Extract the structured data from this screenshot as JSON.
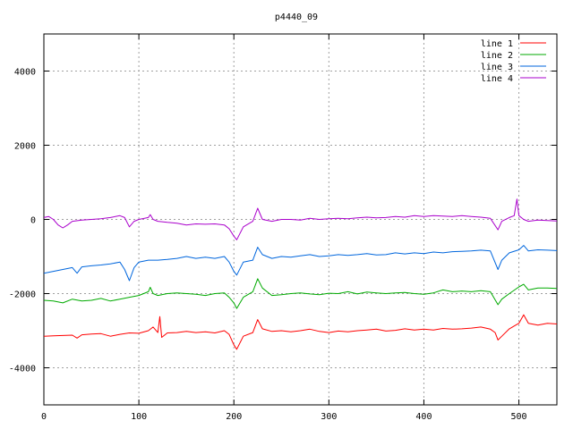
{
  "chart_data": {
    "type": "line",
    "title": "p4440_09",
    "xlabel": "",
    "ylabel": "",
    "xlim": [
      0,
      540
    ],
    "ylim": [
      -5000,
      5000
    ],
    "x_ticks": [
      0,
      100,
      200,
      300,
      400,
      500
    ],
    "y_ticks": [
      -4000,
      -2000,
      0,
      2000,
      4000
    ],
    "x_tick_labels": [
      "0",
      "100",
      "200",
      "300",
      "400",
      "500"
    ],
    "y_tick_labels": [
      "-4000",
      "-2000",
      "0",
      "2000",
      "4000"
    ],
    "grid": true,
    "legend_position": "top-right",
    "series": [
      {
        "name": "line 1",
        "color": "#ff0000",
        "points": [
          [
            0,
            -3150
          ],
          [
            10,
            -3140
          ],
          [
            20,
            -3130
          ],
          [
            30,
            -3120
          ],
          [
            35,
            -3200
          ],
          [
            40,
            -3110
          ],
          [
            50,
            -3090
          ],
          [
            60,
            -3080
          ],
          [
            70,
            -3150
          ],
          [
            80,
            -3100
          ],
          [
            90,
            -3060
          ],
          [
            100,
            -3070
          ],
          [
            110,
            -3000
          ],
          [
            115,
            -2900
          ],
          [
            120,
            -3050
          ],
          [
            122,
            -2620
          ],
          [
            124,
            -3180
          ],
          [
            130,
            -3060
          ],
          [
            140,
            -3050
          ],
          [
            150,
            -3020
          ],
          [
            160,
            -3050
          ],
          [
            170,
            -3030
          ],
          [
            180,
            -3060
          ],
          [
            190,
            -3000
          ],
          [
            195,
            -3100
          ],
          [
            200,
            -3380
          ],
          [
            203,
            -3500
          ],
          [
            210,
            -3150
          ],
          [
            220,
            -3050
          ],
          [
            225,
            -2700
          ],
          [
            230,
            -2950
          ],
          [
            240,
            -3020
          ],
          [
            250,
            -3000
          ],
          [
            260,
            -3030
          ],
          [
            270,
            -3000
          ],
          [
            280,
            -2960
          ],
          [
            290,
            -3020
          ],
          [
            300,
            -3050
          ],
          [
            310,
            -3010
          ],
          [
            320,
            -3030
          ],
          [
            330,
            -3000
          ],
          [
            340,
            -2980
          ],
          [
            350,
            -2960
          ],
          [
            360,
            -3010
          ],
          [
            370,
            -2990
          ],
          [
            380,
            -2950
          ],
          [
            390,
            -2980
          ],
          [
            400,
            -2960
          ],
          [
            410,
            -2980
          ],
          [
            420,
            -2940
          ],
          [
            430,
            -2960
          ],
          [
            440,
            -2950
          ],
          [
            450,
            -2930
          ],
          [
            460,
            -2900
          ],
          [
            470,
            -2960
          ],
          [
            475,
            -3050
          ],
          [
            478,
            -3250
          ],
          [
            482,
            -3150
          ],
          [
            490,
            -2950
          ],
          [
            500,
            -2800
          ],
          [
            505,
            -2570
          ],
          [
            510,
            -2800
          ],
          [
            520,
            -2850
          ],
          [
            530,
            -2800
          ],
          [
            540,
            -2820
          ]
        ]
      },
      {
        "name": "line 2",
        "color": "#00aa00",
        "points": [
          [
            0,
            -2180
          ],
          [
            10,
            -2200
          ],
          [
            20,
            -2250
          ],
          [
            30,
            -2150
          ],
          [
            40,
            -2200
          ],
          [
            50,
            -2180
          ],
          [
            60,
            -2130
          ],
          [
            70,
            -2200
          ],
          [
            80,
            -2150
          ],
          [
            90,
            -2100
          ],
          [
            100,
            -2050
          ],
          [
            110,
            -1950
          ],
          [
            112,
            -1830
          ],
          [
            115,
            -2000
          ],
          [
            120,
            -2050
          ],
          [
            130,
            -2000
          ],
          [
            140,
            -1980
          ],
          [
            150,
            -2000
          ],
          [
            160,
            -2020
          ],
          [
            170,
            -2050
          ],
          [
            180,
            -2000
          ],
          [
            190,
            -1980
          ],
          [
            195,
            -2100
          ],
          [
            200,
            -2250
          ],
          [
            203,
            -2400
          ],
          [
            210,
            -2100
          ],
          [
            220,
            -1950
          ],
          [
            225,
            -1600
          ],
          [
            230,
            -1850
          ],
          [
            240,
            -2050
          ],
          [
            250,
            -2030
          ],
          [
            260,
            -2000
          ],
          [
            270,
            -1980
          ],
          [
            280,
            -2010
          ],
          [
            290,
            -2030
          ],
          [
            300,
            -1990
          ],
          [
            310,
            -2000
          ],
          [
            320,
            -1950
          ],
          [
            330,
            -2010
          ],
          [
            340,
            -1960
          ],
          [
            350,
            -1980
          ],
          [
            360,
            -2000
          ],
          [
            370,
            -1980
          ],
          [
            380,
            -1970
          ],
          [
            390,
            -2000
          ],
          [
            400,
            -2020
          ],
          [
            410,
            -1980
          ],
          [
            420,
            -1900
          ],
          [
            430,
            -1950
          ],
          [
            440,
            -1930
          ],
          [
            450,
            -1950
          ],
          [
            460,
            -1920
          ],
          [
            470,
            -1950
          ],
          [
            478,
            -2300
          ],
          [
            482,
            -2150
          ],
          [
            490,
            -2000
          ],
          [
            500,
            -1820
          ],
          [
            505,
            -1750
          ],
          [
            510,
            -1900
          ],
          [
            520,
            -1850
          ],
          [
            530,
            -1850
          ],
          [
            540,
            -1860
          ]
        ]
      },
      {
        "name": "line 3",
        "color": "#0066dd",
        "points": [
          [
            0,
            -1450
          ],
          [
            10,
            -1400
          ],
          [
            20,
            -1350
          ],
          [
            30,
            -1300
          ],
          [
            35,
            -1450
          ],
          [
            40,
            -1280
          ],
          [
            50,
            -1250
          ],
          [
            60,
            -1230
          ],
          [
            70,
            -1200
          ],
          [
            80,
            -1150
          ],
          [
            85,
            -1350
          ],
          [
            90,
            -1650
          ],
          [
            95,
            -1300
          ],
          [
            100,
            -1150
          ],
          [
            110,
            -1100
          ],
          [
            120,
            -1100
          ],
          [
            130,
            -1080
          ],
          [
            140,
            -1050
          ],
          [
            150,
            -1000
          ],
          [
            160,
            -1050
          ],
          [
            170,
            -1020
          ],
          [
            180,
            -1050
          ],
          [
            190,
            -1000
          ],
          [
            195,
            -1150
          ],
          [
            200,
            -1400
          ],
          [
            203,
            -1500
          ],
          [
            210,
            -1150
          ],
          [
            220,
            -1100
          ],
          [
            225,
            -750
          ],
          [
            230,
            -950
          ],
          [
            240,
            -1050
          ],
          [
            250,
            -1000
          ],
          [
            260,
            -1020
          ],
          [
            270,
            -980
          ],
          [
            280,
            -950
          ],
          [
            290,
            -1000
          ],
          [
            300,
            -980
          ],
          [
            310,
            -950
          ],
          [
            320,
            -970
          ],
          [
            330,
            -950
          ],
          [
            340,
            -920
          ],
          [
            350,
            -960
          ],
          [
            360,
            -950
          ],
          [
            370,
            -900
          ],
          [
            380,
            -930
          ],
          [
            390,
            -900
          ],
          [
            400,
            -920
          ],
          [
            410,
            -880
          ],
          [
            420,
            -900
          ],
          [
            430,
            -870
          ],
          [
            440,
            -860
          ],
          [
            450,
            -850
          ],
          [
            460,
            -830
          ],
          [
            470,
            -850
          ],
          [
            478,
            -1350
          ],
          [
            482,
            -1100
          ],
          [
            490,
            -900
          ],
          [
            500,
            -820
          ],
          [
            505,
            -700
          ],
          [
            510,
            -850
          ],
          [
            520,
            -820
          ],
          [
            530,
            -830
          ],
          [
            540,
            -840
          ]
        ]
      },
      {
        "name": "line 4",
        "color": "#aa00cc",
        "points": [
          [
            0,
            50
          ],
          [
            5,
            80
          ],
          [
            10,
            0
          ],
          [
            15,
            -150
          ],
          [
            20,
            -230
          ],
          [
            25,
            -150
          ],
          [
            30,
            -50
          ],
          [
            40,
            -20
          ],
          [
            50,
            0
          ],
          [
            60,
            20
          ],
          [
            70,
            50
          ],
          [
            80,
            100
          ],
          [
            85,
            50
          ],
          [
            90,
            -200
          ],
          [
            95,
            -50
          ],
          [
            100,
            0
          ],
          [
            110,
            50
          ],
          [
            112,
            130
          ],
          [
            115,
            0
          ],
          [
            120,
            -50
          ],
          [
            130,
            -80
          ],
          [
            140,
            -100
          ],
          [
            150,
            -150
          ],
          [
            160,
            -120
          ],
          [
            170,
            -130
          ],
          [
            180,
            -120
          ],
          [
            190,
            -150
          ],
          [
            195,
            -250
          ],
          [
            200,
            -450
          ],
          [
            203,
            -550
          ],
          [
            210,
            -200
          ],
          [
            220,
            -50
          ],
          [
            225,
            300
          ],
          [
            230,
            0
          ],
          [
            240,
            -50
          ],
          [
            250,
            0
          ],
          [
            260,
            0
          ],
          [
            270,
            -20
          ],
          [
            280,
            30
          ],
          [
            290,
            0
          ],
          [
            300,
            20
          ],
          [
            310,
            30
          ],
          [
            320,
            20
          ],
          [
            330,
            40
          ],
          [
            340,
            60
          ],
          [
            350,
            40
          ],
          [
            360,
            50
          ],
          [
            370,
            80
          ],
          [
            380,
            60
          ],
          [
            390,
            100
          ],
          [
            400,
            80
          ],
          [
            410,
            100
          ],
          [
            420,
            90
          ],
          [
            430,
            80
          ],
          [
            440,
            100
          ],
          [
            450,
            80
          ],
          [
            460,
            60
          ],
          [
            470,
            30
          ],
          [
            478,
            -280
          ],
          [
            482,
            -50
          ],
          [
            490,
            50
          ],
          [
            495,
            100
          ],
          [
            498,
            550
          ],
          [
            500,
            100
          ],
          [
            505,
            0
          ],
          [
            510,
            -50
          ],
          [
            520,
            -20
          ],
          [
            530,
            -30
          ],
          [
            540,
            -40
          ]
        ]
      }
    ]
  }
}
